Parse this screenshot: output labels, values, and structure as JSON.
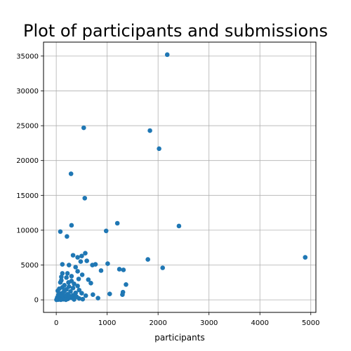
{
  "chart_data": {
    "type": "scatter",
    "title": "Plot of participants and submissions",
    "xlabel": "participants",
    "ylabel": "",
    "xlim": [
      -250,
      5100
    ],
    "ylim": [
      -1800,
      37000
    ],
    "xticks": [
      0,
      1000,
      2000,
      3000,
      4000,
      5000
    ],
    "yticks": [
      0,
      5000,
      10000,
      15000,
      20000,
      25000,
      30000,
      35000
    ],
    "xtick_labels": [
      "0",
      "1000",
      "2000",
      "3000",
      "4000",
      "5000"
    ],
    "ytick_labels": [
      "0",
      "5000",
      "10000",
      "15000",
      "20000",
      "25000",
      "30000",
      "35000"
    ],
    "grid": true,
    "marker_color": "#1f77b4",
    "points": [
      {
        "x": 2180,
        "y": 35200
      },
      {
        "x": 540,
        "y": 24700
      },
      {
        "x": 1840,
        "y": 24300
      },
      {
        "x": 2020,
        "y": 21700
      },
      {
        "x": 290,
        "y": 18100
      },
      {
        "x": 560,
        "y": 14600
      },
      {
        "x": 1200,
        "y": 11000
      },
      {
        "x": 300,
        "y": 10700
      },
      {
        "x": 2410,
        "y": 10600
      },
      {
        "x": 980,
        "y": 9900
      },
      {
        "x": 80,
        "y": 9800
      },
      {
        "x": 210,
        "y": 9100
      },
      {
        "x": 570,
        "y": 6700
      },
      {
        "x": 330,
        "y": 6400
      },
      {
        "x": 500,
        "y": 6300
      },
      {
        "x": 420,
        "y": 6100
      },
      {
        "x": 4890,
        "y": 6100
      },
      {
        "x": 1800,
        "y": 5800
      },
      {
        "x": 600,
        "y": 5600
      },
      {
        "x": 480,
        "y": 5500
      },
      {
        "x": 1010,
        "y": 5200
      },
      {
        "x": 120,
        "y": 5100
      },
      {
        "x": 250,
        "y": 5000
      },
      {
        "x": 770,
        "y": 5100
      },
      {
        "x": 710,
        "y": 5000
      },
      {
        "x": 380,
        "y": 4700
      },
      {
        "x": 2090,
        "y": 4600
      },
      {
        "x": 1240,
        "y": 4400
      },
      {
        "x": 1320,
        "y": 4300
      },
      {
        "x": 880,
        "y": 4200
      },
      {
        "x": 420,
        "y": 4100
      },
      {
        "x": 120,
        "y": 3800
      },
      {
        "x": 220,
        "y": 3800
      },
      {
        "x": 510,
        "y": 3600
      },
      {
        "x": 300,
        "y": 3400
      },
      {
        "x": 200,
        "y": 3200
      },
      {
        "x": 440,
        "y": 3000
      },
      {
        "x": 630,
        "y": 2900
      },
      {
        "x": 100,
        "y": 2800
      },
      {
        "x": 300,
        "y": 2700
      },
      {
        "x": 80,
        "y": 2500
      },
      {
        "x": 680,
        "y": 2400
      },
      {
        "x": 350,
        "y": 2300
      },
      {
        "x": 1370,
        "y": 2200
      },
      {
        "x": 160,
        "y": 2100
      },
      {
        "x": 420,
        "y": 2000
      },
      {
        "x": 250,
        "y": 1900
      },
      {
        "x": 120,
        "y": 1800
      },
      {
        "x": 330,
        "y": 1700
      },
      {
        "x": 60,
        "y": 1600
      },
      {
        "x": 200,
        "y": 1500
      },
      {
        "x": 450,
        "y": 1400
      },
      {
        "x": 30,
        "y": 1300
      },
      {
        "x": 280,
        "y": 1200
      },
      {
        "x": 1310,
        "y": 1100
      },
      {
        "x": 140,
        "y": 1100
      },
      {
        "x": 380,
        "y": 1000
      },
      {
        "x": 500,
        "y": 950
      },
      {
        "x": 90,
        "y": 900
      },
      {
        "x": 1050,
        "y": 850
      },
      {
        "x": 220,
        "y": 800
      },
      {
        "x": 1300,
        "y": 750
      },
      {
        "x": 720,
        "y": 750
      },
      {
        "x": 40,
        "y": 700
      },
      {
        "x": 330,
        "y": 650
      },
      {
        "x": 150,
        "y": 600
      },
      {
        "x": 580,
        "y": 600
      },
      {
        "x": 260,
        "y": 550
      },
      {
        "x": 70,
        "y": 500
      },
      {
        "x": 400,
        "y": 450
      },
      {
        "x": 180,
        "y": 400
      },
      {
        "x": 20,
        "y": 350
      },
      {
        "x": 300,
        "y": 300
      },
      {
        "x": 820,
        "y": 250
      },
      {
        "x": 110,
        "y": 250
      },
      {
        "x": 450,
        "y": 200
      },
      {
        "x": 60,
        "y": 150
      },
      {
        "x": 230,
        "y": 150
      },
      {
        "x": 10,
        "y": 100
      },
      {
        "x": 520,
        "y": 100
      },
      {
        "x": 140,
        "y": 80
      },
      {
        "x": 350,
        "y": 60
      },
      {
        "x": 40,
        "y": 40
      },
      {
        "x": 90,
        "y": 20
      },
      {
        "x": 190,
        "y": 20
      },
      {
        "x": 5,
        "y": 10
      },
      {
        "x": 270,
        "y": 350
      },
      {
        "x": 160,
        "y": 1300
      },
      {
        "x": 240,
        "y": 2500
      },
      {
        "x": 100,
        "y": 3300
      }
    ]
  }
}
